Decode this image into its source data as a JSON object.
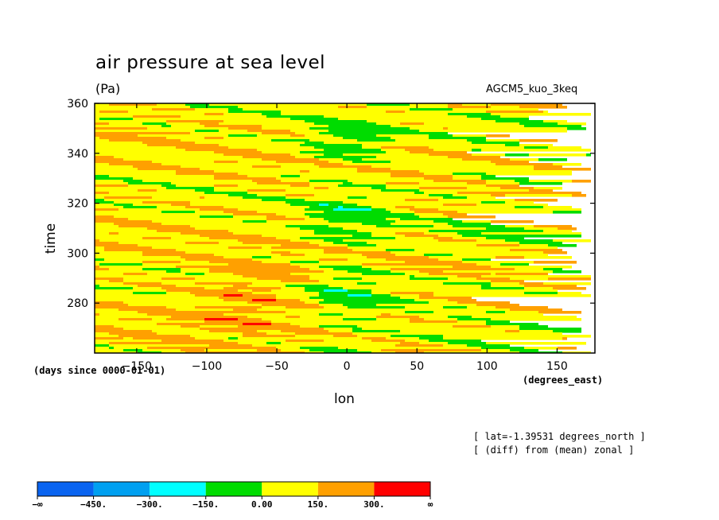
{
  "chart_data": {
    "type": "heatmap",
    "title": "air pressure at sea level",
    "units": "(Pa)",
    "model_label": "AGCM5_kuo_3keq",
    "xlabel": "lon",
    "xunits": "(degrees_east)",
    "ylabel": "time",
    "yunits": "(days since 0000-01-01)",
    "xlim": [
      -180,
      177
    ],
    "ylim": [
      260,
      360
    ],
    "xticks": [
      -150,
      -100,
      -50,
      0,
      50,
      100,
      150
    ],
    "xtick_labels": [
      "−150",
      "−100",
      "−50",
      "0",
      "50",
      "100",
      "150"
    ],
    "yticks": [
      280,
      300,
      320,
      340,
      360
    ],
    "ytick_labels": [
      "280",
      "300",
      "320",
      "340",
      "360"
    ],
    "annotations": [
      "[ lat=-1.39531 degrees_north ]",
      "[ (diff) from (mean) zonal ]"
    ],
    "colorbar": {
      "colors": [
        "#0a64f0",
        "#00a0f0",
        "#00ffff",
        "#00dc00",
        "#ffff00",
        "#ffa000",
        "#ff0000"
      ],
      "levels": [
        -450,
        -300,
        -150,
        0,
        150,
        300
      ],
      "labels": [
        "−∞",
        "−450.",
        "−300.",
        "−150.",
        "0.00",
        "150.",
        "300.",
        "∞"
      ]
    }
  }
}
